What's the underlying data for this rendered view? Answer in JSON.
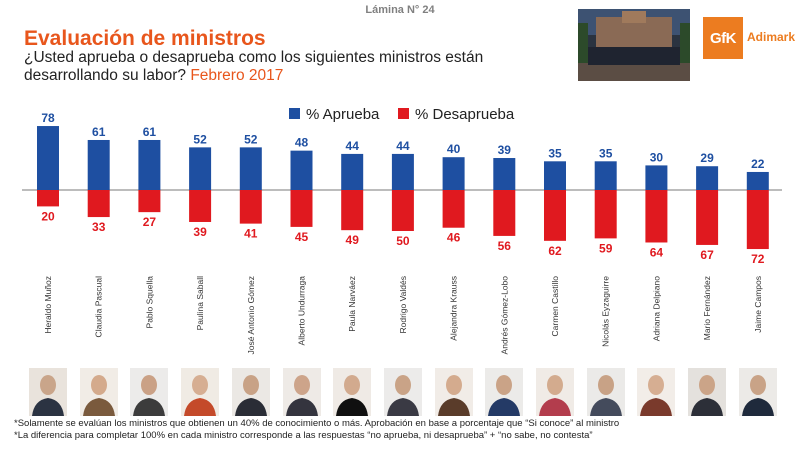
{
  "slide_number": "Lámina N° 24",
  "title": "Evaluación de ministros",
  "question": "¿Usted aprueba o desaprueba como los siguientes ministros están desarrollando su labor?",
  "date": "Febrero 2017",
  "logo": {
    "text": "Adimark",
    "mark": "GfK"
  },
  "footnotes": [
    "*Solamente se evalúan los ministros que obtienen un 40% de conocimiento o más. Aprobación en base a porcentaje que “Si conoce” al ministro",
    "*La diferencia para completar 100% en cada ministro corresponde a las respuestas “no aprueba, ni desaprueba” + “no sabe, no contesta”"
  ],
  "chart_data": {
    "type": "bar",
    "categories": [
      "Heraldo Muñoz",
      "Claudia Pascual",
      "Pablo Squella",
      "Paulina Saball",
      "José Antonio Gómez",
      "Alberto Undurraga",
      "Paula Narváez",
      "Rodrigo Valdés",
      "Alejandra Krauss",
      "Andrés Gómez-Lobo",
      "Carmen Castillo",
      "Nicolás Eyzaguirre",
      "Adriana Delpiano",
      "Mario Fernández",
      "Jaime Campos"
    ],
    "series": [
      {
        "name": "% Aprueba",
        "color": "#1e4fa1",
        "values": [
          78,
          61,
          61,
          52,
          52,
          48,
          44,
          44,
          40,
          39,
          35,
          35,
          30,
          29,
          22
        ]
      },
      {
        "name": "% Desaprueba",
        "color": "#e0191f",
        "values": [
          20,
          33,
          27,
          39,
          41,
          45,
          49,
          50,
          46,
          56,
          62,
          59,
          64,
          67,
          72
        ]
      }
    ],
    "legend_position": "top-center"
  }
}
